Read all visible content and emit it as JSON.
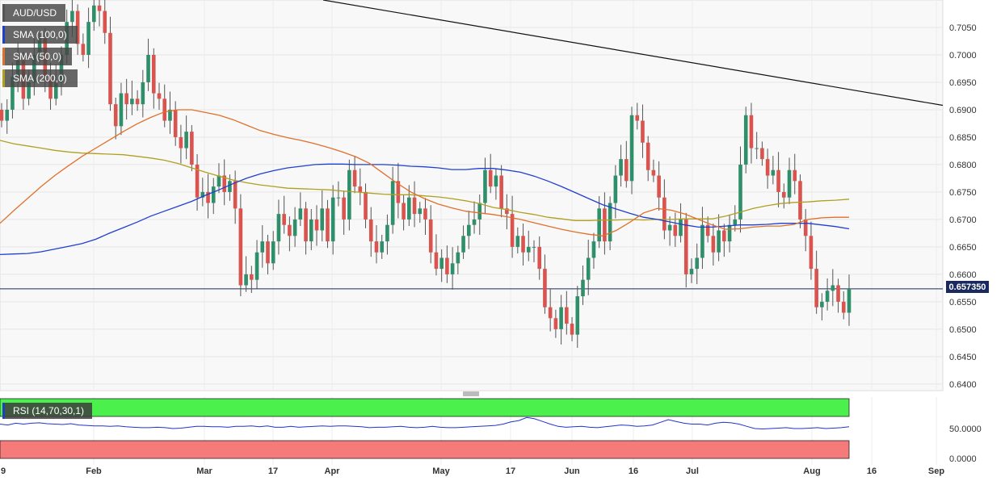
{
  "colors": {
    "up": "#2f8f6a",
    "down": "#d9534f",
    "sma100": "#1f3fd1",
    "sma50": "#e0702a",
    "sma200": "#b0a020",
    "trendline": "#111111",
    "current": "#1a2a5e",
    "rsi_line": "#2233cc",
    "rsi_over": "#4cf04c",
    "rsi_under": "#f57b7b"
  },
  "legend": {
    "symbol": "AUD/USD",
    "sma100": "SMA (100,0)",
    "sma50": "SMA (50,0)",
    "sma200": "SMA (200,0)"
  },
  "current_price_label": "0.657350",
  "rsi_label": "RSI (14,70,30,1)",
  "rsi_ticks": [
    "50.0000",
    "0.0000"
  ],
  "chart_data": {
    "type": "candlestick",
    "y_ticks": [
      0.705,
      0.7,
      0.695,
      0.69,
      0.685,
      0.68,
      0.675,
      0.67,
      0.665,
      0.66,
      0.655,
      0.65,
      0.645,
      0.64
    ],
    "y_tick_labels": [
      "0.7050",
      "0.7000",
      "0.6950",
      "0.6900",
      "0.6850",
      "0.6800",
      "0.6750",
      "0.6700",
      "0.6650",
      "0.6600",
      "0.6550",
      "0.6500",
      "0.6450",
      "0.6400"
    ],
    "ylim": [
      0.6388,
      0.71
    ],
    "x_labels": [
      "9",
      "Feb",
      "Mar",
      "17",
      "Apr",
      "May",
      "17",
      "Jun",
      "16",
      "Jul",
      "Aug",
      "16",
      "Sep"
    ],
    "current_price": 0.65735,
    "closes": [
      0.688,
      0.69,
      0.696,
      0.699,
      0.692,
      0.695,
      0.7,
      0.703,
      0.696,
      0.692,
      0.695,
      0.7,
      0.706,
      0.708,
      0.702,
      0.7,
      0.706,
      0.709,
      0.708,
      0.704,
      0.691,
      0.687,
      0.693,
      0.691,
      0.692,
      0.691,
      0.695,
      0.7,
      0.693,
      0.692,
      0.688,
      0.69,
      0.685,
      0.683,
      0.686,
      0.68,
      0.674,
      0.675,
      0.673,
      0.676,
      0.678,
      0.675,
      0.677,
      0.672,
      0.658,
      0.66,
      0.659,
      0.664,
      0.666,
      0.662,
      0.666,
      0.671,
      0.669,
      0.667,
      0.67,
      0.672,
      0.666,
      0.67,
      0.668,
      0.672,
      0.666,
      0.674,
      0.674,
      0.67,
      0.679,
      0.676,
      0.675,
      0.67,
      0.666,
      0.664,
      0.666,
      0.669,
      0.677,
      0.673,
      0.67,
      0.674,
      0.671,
      0.672,
      0.67,
      0.664,
      0.661,
      0.663,
      0.66,
      0.662,
      0.664,
      0.667,
      0.669,
      0.67,
      0.673,
      0.679,
      0.676,
      0.678,
      0.672,
      0.671,
      0.665,
      0.667,
      0.664,
      0.665,
      0.665,
      0.661,
      0.654,
      0.652,
      0.65,
      0.654,
      0.651,
      0.649,
      0.656,
      0.659,
      0.663,
      0.666,
      0.672,
      0.666,
      0.673,
      0.678,
      0.681,
      0.677,
      0.689,
      0.688,
      0.684,
      0.679,
      0.678,
      0.674,
      0.668,
      0.669,
      0.667,
      0.67,
      0.66,
      0.661,
      0.663,
      0.669,
      0.667,
      0.664,
      0.668,
      0.666,
      0.669,
      0.67,
      0.68,
      0.689,
      0.683,
      0.683,
      0.681,
      0.678,
      0.679,
      0.675,
      0.674,
      0.679,
      0.677,
      0.67,
      0.667,
      0.661,
      0.654,
      0.655,
      0.657,
      0.658,
      0.655,
      0.653,
      0.65735
    ],
    "sma50": [
      0.6693,
      0.6716,
      0.6738,
      0.676,
      0.678,
      0.6798,
      0.6815,
      0.683,
      0.6845,
      0.686,
      0.6874,
      0.6886,
      0.6896,
      0.69,
      0.69,
      0.6895,
      0.689,
      0.6882,
      0.6872,
      0.6862,
      0.6855,
      0.6849,
      0.6844,
      0.6838,
      0.6831,
      0.6823,
      0.6814,
      0.6802,
      0.6784,
      0.6766,
      0.675,
      0.6738,
      0.6728,
      0.6721,
      0.6715,
      0.6712,
      0.6709,
      0.6705,
      0.67,
      0.6694,
      0.6688,
      0.6682,
      0.6677,
      0.6673,
      0.667,
      0.668,
      0.6695,
      0.6712,
      0.672,
      0.6717,
      0.671,
      0.67,
      0.669,
      0.6682,
      0.6683,
      0.6686,
      0.6688,
      0.6688,
      0.6691,
      0.67,
      0.6703,
      0.6704,
      0.6704
    ],
    "sma100": [
      0.6636,
      0.6637,
      0.6638,
      0.6641,
      0.6646,
      0.6651,
      0.6656,
      0.6664,
      0.6675,
      0.6685,
      0.6695,
      0.6706,
      0.6715,
      0.6724,
      0.6733,
      0.6744,
      0.6754,
      0.6765,
      0.6775,
      0.6783,
      0.6789,
      0.6794,
      0.6797,
      0.68,
      0.6801,
      0.6801,
      0.68,
      0.68,
      0.68,
      0.6799,
      0.6797,
      0.6796,
      0.6794,
      0.6791,
      0.6791,
      0.6793,
      0.6793,
      0.679,
      0.6786,
      0.6779,
      0.677,
      0.676,
      0.6749,
      0.6738,
      0.6727,
      0.6719,
      0.6711,
      0.6704,
      0.67,
      0.6695,
      0.669,
      0.6686,
      0.6686,
      0.6688,
      0.669,
      0.669,
      0.6691,
      0.6693,
      0.6693,
      0.6693,
      0.669,
      0.6687,
      0.6683
    ],
    "sma200": [
      0.6844,
      0.6838,
      0.6834,
      0.683,
      0.6826,
      0.6823,
      0.6821,
      0.682,
      0.6819,
      0.6818,
      0.6815,
      0.6812,
      0.6808,
      0.6802,
      0.6794,
      0.6786,
      0.6779,
      0.6772,
      0.6767,
      0.6763,
      0.676,
      0.6757,
      0.6756,
      0.6755,
      0.6754,
      0.6752,
      0.675,
      0.6748,
      0.6746,
      0.6745,
      0.6745,
      0.6743,
      0.6741,
      0.6738,
      0.6734,
      0.6729,
      0.6722,
      0.6718,
      0.6713,
      0.6709,
      0.6704,
      0.6701,
      0.6698,
      0.6698,
      0.6699,
      0.6699,
      0.67,
      0.6699,
      0.67,
      0.67,
      0.6701,
      0.6701,
      0.6701,
      0.6706,
      0.6713,
      0.672,
      0.6725,
      0.6729,
      0.6731,
      0.6732,
      0.6734,
      0.6735,
      0.6737
    ],
    "trendline": {
      "start": 0.71,
      "end": 0.6908
    },
    "rsi_values": [
      60,
      58,
      62,
      60,
      62,
      63,
      61,
      60,
      59,
      61,
      58,
      57,
      56,
      56,
      55,
      56,
      54,
      53,
      52,
      52,
      53,
      52,
      50,
      51,
      53,
      55,
      55,
      54,
      54,
      53,
      55,
      55,
      56,
      54,
      56,
      53,
      53,
      55,
      53,
      54,
      55,
      56,
      55,
      56,
      56,
      55,
      54,
      52,
      53,
      53,
      54,
      55,
      53,
      52,
      53,
      55,
      53,
      52,
      52,
      53,
      54,
      55,
      56,
      57,
      60,
      65,
      68,
      75,
      72,
      66,
      60,
      55,
      53,
      54,
      55,
      53,
      52,
      54,
      56,
      58,
      57,
      55,
      56,
      58,
      64,
      70,
      66,
      62,
      60,
      60,
      58,
      62,
      64,
      63,
      60,
      55,
      50,
      49,
      50,
      51,
      52,
      50,
      50,
      51,
      52,
      50,
      51,
      52,
      54
    ]
  }
}
